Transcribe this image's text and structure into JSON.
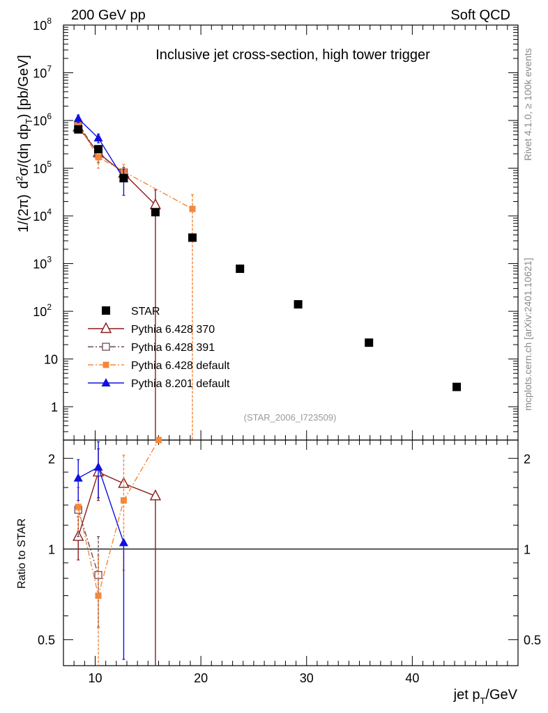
{
  "header": {
    "left": "200 GeV pp",
    "right": "Soft QCD"
  },
  "side_labels": {
    "rivet": "Rivet 4.1.0, ≥ 100k events",
    "source": "mcplots.cern.ch [arXiv:2401.10621]"
  },
  "colors": {
    "star": "#000000",
    "p370": "#8b1a1a",
    "p391": "#6b4a5a",
    "p6def": "#f5873a",
    "p8def": "#1010e0"
  },
  "chart_data": [
    {
      "type": "scatter",
      "title": "Inclusive jet cross-section, high tower trigger",
      "analysis_id": "(STAR_2006_I723509)",
      "ylabel": {
        "a": "1/(2π)",
        "b": "d",
        "c": "2",
        "d": "σ/(dη dp",
        "e": "T",
        "f": ") [pb/GeV]"
      },
      "xlabel": {
        "a": "jet p",
        "b": "T",
        "c": "/GeV"
      },
      "xlim": [
        7,
        50
      ],
      "ylim": [
        0.2,
        100000000
      ],
      "yscale": "log",
      "yticks": [
        {
          "v": 1,
          "label": "1"
        },
        {
          "v": 10,
          "label": "10"
        },
        {
          "v": 100,
          "base": "10",
          "exp": "2"
        },
        {
          "v": 1000,
          "base": "10",
          "exp": "3"
        },
        {
          "v": 10000,
          "base": "10",
          "exp": "4"
        },
        {
          "v": 100000,
          "base": "10",
          "exp": "5"
        },
        {
          "v": 1000000,
          "base": "10",
          "exp": "6"
        },
        {
          "v": 10000000,
          "base": "10",
          "exp": "7"
        },
        {
          "v": 100000000,
          "base": "10",
          "exp": "8"
        }
      ],
      "xticks": [
        10,
        20,
        30,
        40
      ],
      "series": [
        {
          "name": "STAR",
          "key": "star",
          "marker": "square",
          "style": "none",
          "x": [
            8.4,
            10.3,
            12.7,
            15.7,
            19.2,
            23.7,
            29.2,
            35.9,
            44.2
          ],
          "y": [
            650000,
            250000,
            62000,
            12000,
            3500,
            780,
            140,
            22,
            2.6
          ],
          "lo": [
            600000,
            230000,
            57000,
            11000,
            3200,
            720,
            130,
            20,
            2.4
          ],
          "hi": [
            700000,
            270000,
            67000,
            13000,
            3800,
            840,
            150,
            24,
            2.8
          ]
        },
        {
          "name": "Pythia 6.428 370",
          "key": "p370",
          "marker": "triangle-open",
          "style": "solid",
          "x": [
            8.4,
            10.3,
            12.7,
            15.7
          ],
          "y": [
            720000,
            210000,
            78000,
            17000
          ],
          "lo": [
            600000,
            170000,
            60000,
            0.05
          ],
          "hi": [
            850000,
            250000,
            96000,
            35000
          ]
        },
        {
          "name": "Pythia 6.428 391",
          "key": "p391",
          "marker": "square-open",
          "style": "dashdot",
          "x": [
            8.4,
            10.3,
            12.7
          ],
          "y": [
            830000,
            200000,
            82000
          ],
          "lo": [
            680000,
            130000,
            60000
          ],
          "hi": [
            980000,
            270000,
            104000
          ]
        },
        {
          "name": "Pythia 6.428 default",
          "key": "p6def",
          "marker": "square-small",
          "style": "dashdot",
          "x": [
            8.4,
            10.3,
            12.7,
            19.2
          ],
          "y": [
            800000,
            170000,
            85000,
            14000
          ],
          "lo": [
            650000,
            100000,
            55000,
            0.05
          ],
          "hi": [
            950000,
            240000,
            120000,
            28000
          ]
        },
        {
          "name": "Pythia 8.201 default",
          "key": "p8def",
          "marker": "triangle",
          "style": "solid",
          "x": [
            8.4,
            10.3,
            12.7
          ],
          "y": [
            1100000,
            430000,
            60000
          ],
          "lo": [
            900000,
            340000,
            27000
          ],
          "hi": [
            1300000,
            520000,
            95000
          ]
        }
      ],
      "legend": [
        {
          "label": "STAR",
          "key": "star"
        },
        {
          "label": "Pythia 6.428 370",
          "key": "p370"
        },
        {
          "label": "Pythia 6.428 391",
          "key": "p391"
        },
        {
          "label": "Pythia 6.428 default",
          "key": "p6def"
        },
        {
          "label": "Pythia 8.201 default",
          "key": "p8def"
        }
      ],
      "legend_position": "lower-left"
    },
    {
      "type": "scatter",
      "ylabel": "Ratio to STAR",
      "xlim": [
        7,
        50
      ],
      "ylim": [
        0.41,
        2.3
      ],
      "yscale": "log",
      "yticks": [
        {
          "v": 0.5,
          "label": "0.5"
        },
        {
          "v": 1,
          "label": "1"
        },
        {
          "v": 2,
          "label": "2"
        }
      ],
      "reference_line": 1,
      "series": [
        {
          "name": "Pythia 6.428 370",
          "key": "p370",
          "marker": "triangle-open",
          "style": "solid",
          "x": [
            8.4,
            10.3,
            12.7,
            15.7
          ],
          "y": [
            1.1,
            1.8,
            1.65,
            1.5
          ],
          "lo": [
            0.92,
            1.45,
            1.65,
            0.3
          ],
          "hi": [
            1.28,
            2.15,
            1.65,
            1.5
          ]
        },
        {
          "name": "Pythia 6.428 391",
          "key": "p391",
          "marker": "square-open",
          "style": "dashdot",
          "x": [
            8.4,
            10.3
          ],
          "y": [
            1.35,
            0.82
          ],
          "lo": [
            1.1,
            0.55
          ],
          "hi": [
            1.6,
            1.1
          ]
        },
        {
          "name": "Pythia 6.428 default",
          "key": "p6def",
          "marker": "square-small",
          "style": "dashdot",
          "x": [
            8.4,
            10.3,
            12.7,
            16.0
          ],
          "y": [
            1.38,
            0.7,
            1.45,
            2.3
          ],
          "lo": [
            1.15,
            0.3,
            0.85,
            2.3
          ],
          "hi": [
            1.6,
            0.95,
            2.05,
            2.3
          ]
        },
        {
          "name": "Pythia 8.201 default",
          "key": "p8def",
          "marker": "triangle",
          "style": "solid",
          "x": [
            8.4,
            10.3,
            12.7
          ],
          "y": [
            1.72,
            1.87,
            1.05
          ],
          "lo": [
            1.45,
            1.48,
            0.43
          ],
          "hi": [
            1.98,
            2.27,
            1.05
          ]
        }
      ]
    }
  ]
}
